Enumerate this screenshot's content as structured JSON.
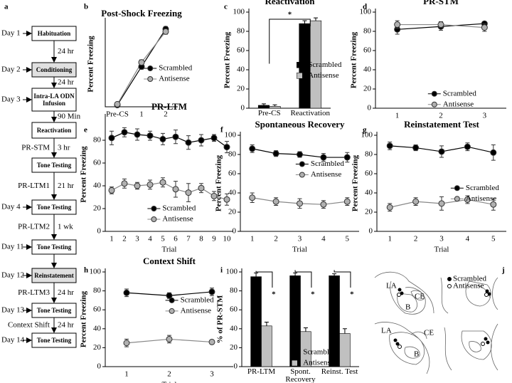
{
  "protocol": {
    "panel": "a",
    "boxes": [
      {
        "day": "Day 1",
        "label": "Habituation"
      },
      {
        "day": "Day 2",
        "label": "Conditioning",
        "shaded": true
      },
      {
        "day": "Day 3",
        "label": "Intra-LA ODN Infusion"
      },
      {
        "label": "Reactivation"
      },
      {
        "label": "Tone Testing"
      },
      {
        "day": "Day 4",
        "label": "Tone Testing"
      },
      {
        "day": "Day 11",
        "label": "Tone Testing"
      },
      {
        "day": "Day 12",
        "label": "Reinstatement",
        "shaded": true
      },
      {
        "day": "Day 13",
        "label": "Tone Testing"
      },
      {
        "day": "Day 14",
        "label": "Tone Testing"
      }
    ],
    "links": [
      {
        "right": "24 hr"
      },
      {
        "right": "24 hr"
      },
      {
        "right": "90 Min"
      },
      {
        "left": "PR-STM",
        "right": "3 hr"
      },
      {
        "left": "PR-LTM1",
        "right": "21 hr"
      },
      {
        "left": "PR-LTM2",
        "right": "1 wk"
      },
      null,
      {
        "left": "PR-LTM3",
        "right": "24 hr"
      },
      {
        "left": "Context Shift",
        "right": "24 hr"
      }
    ]
  },
  "chart_data": [
    {
      "panel": "b",
      "type": "line",
      "title": "Post-Shock Freezing",
      "y_label": "Percent Freezing",
      "categories": [
        "Pre-CS",
        "1",
        "2"
      ],
      "ylim": [
        0,
        100
      ],
      "legend": "center right",
      "series": [
        {
          "name": "Scrambled",
          "color": "#000000",
          "values": [
            2,
            47,
            91
          ],
          "errors": [
            1,
            3,
            3
          ]
        },
        {
          "name": "Antisense",
          "color": "#b0b0b0",
          "values": [
            3,
            52,
            88
          ],
          "errors": [
            1,
            3,
            3
          ]
        }
      ]
    },
    {
      "panel": "c",
      "type": "bar",
      "title": "Reactivation",
      "y_label": "Percent Freezing",
      "categories": [
        "Pre-CS",
        "Reactivation"
      ],
      "ylim": [
        0,
        100
      ],
      "yticks": [
        0,
        20,
        40,
        60,
        80,
        100
      ],
      "legend": "center right",
      "annotations": [
        "*"
      ],
      "series": [
        {
          "name": "Scrambled",
          "color": "#000000",
          "values": [
            3,
            88
          ],
          "errors": [
            1.5,
            3
          ]
        },
        {
          "name": "Antisense",
          "color": "#c0c0c0",
          "values": [
            2,
            91
          ],
          "errors": [
            1.5,
            3
          ]
        }
      ]
    },
    {
      "panel": "d",
      "type": "line",
      "title": "PR-STM",
      "y_label": "Percent Freezing",
      "categories": [
        "1",
        "2",
        "3"
      ],
      "ylim": [
        0,
        100
      ],
      "yticks": [
        0,
        20,
        40,
        60,
        80,
        100
      ],
      "legend": "lower right",
      "series": [
        {
          "name": "Scrambled",
          "color": "#000000",
          "values": [
            82,
            85,
            88
          ],
          "errors": [
            5,
            4,
            2
          ]
        },
        {
          "name": "Antisense",
          "color": "#b0b0b0",
          "values": [
            87,
            87,
            84
          ],
          "errors": [
            4,
            3,
            4
          ]
        }
      ]
    },
    {
      "panel": "e",
      "type": "line",
      "title": "PR-LTM",
      "y_label": "Percent Freezing",
      "x_label": "Trial",
      "categories": [
        "1",
        "2",
        "3",
        "4",
        "5",
        "6",
        "7",
        "8",
        "9",
        "10"
      ],
      "ylim": [
        0,
        100
      ],
      "yticks": [
        0,
        20,
        40,
        60,
        80
      ],
      "legend": "lower center",
      "series": [
        {
          "name": "Scrambled",
          "color": "#000000",
          "values": [
            82,
            87,
            85,
            84,
            81,
            83,
            78,
            80,
            82,
            74
          ],
          "errors": [
            6,
            4,
            5,
            4,
            5,
            6,
            6,
            5,
            3,
            5
          ]
        },
        {
          "name": "Antisense",
          "color": "#b0b0b0",
          "values": [
            36,
            42,
            40,
            41,
            43,
            37,
            34,
            38,
            31,
            28
          ],
          "errors": [
            3,
            4,
            3,
            4,
            4,
            7,
            8,
            4,
            4,
            5
          ]
        }
      ]
    },
    {
      "panel": "f",
      "type": "line",
      "title": "Spontaneous Recovery",
      "y_label": "Percent Freezing",
      "x_label": "Trial",
      "categories": [
        "1",
        "2",
        "3",
        "4",
        "5"
      ],
      "ylim": [
        0,
        100
      ],
      "yticks": [
        0,
        20,
        40,
        60,
        80,
        100
      ],
      "legend": "upper right",
      "series": [
        {
          "name": "Scrambled",
          "color": "#000000",
          "values": [
            86,
            81,
            80,
            77,
            77
          ],
          "errors": [
            4,
            3,
            3,
            4,
            5
          ]
        },
        {
          "name": "Antisense",
          "color": "#b0b0b0",
          "values": [
            35,
            31,
            29,
            28,
            31
          ],
          "errors": [
            5,
            4,
            5,
            4,
            4
          ]
        }
      ]
    },
    {
      "panel": "g",
      "type": "line",
      "title": "Reinstatement Test",
      "y_label": "Percent Freezing",
      "x_label": "Trial",
      "categories": [
        "1",
        "2",
        "3",
        "4",
        "5"
      ],
      "ylim": [
        0,
        100
      ],
      "yticks": [
        0,
        20,
        40,
        60,
        80,
        100
      ],
      "legend": "center right",
      "series": [
        {
          "name": "Scrambled",
          "color": "#000000",
          "values": [
            89,
            87,
            83,
            88,
            82
          ],
          "errors": [
            4,
            3,
            6,
            4,
            8
          ]
        },
        {
          "name": "Antisense",
          "color": "#b0b0b0",
          "values": [
            25,
            31,
            29,
            33,
            28
          ],
          "errors": [
            4,
            4,
            7,
            4,
            6
          ]
        }
      ]
    },
    {
      "panel": "h",
      "type": "line",
      "title": "Context Shift",
      "y_label": "Percent Freezing",
      "x_label": "Trial",
      "categories": [
        "1",
        "2",
        "3"
      ],
      "ylim": [
        0,
        100
      ],
      "yticks": [
        0,
        20,
        40,
        60,
        80,
        100
      ],
      "legend": "upper right",
      "series": [
        {
          "name": "Scrambled",
          "color": "#000000",
          "values": [
            78,
            75,
            79
          ],
          "errors": [
            4,
            3,
            4
          ]
        },
        {
          "name": "Antisense",
          "color": "#b0b0b0",
          "values": [
            25,
            29,
            26
          ],
          "errors": [
            4,
            4,
            2
          ]
        }
      ]
    },
    {
      "panel": "i",
      "type": "bar",
      "y_label": "% of PR-STM",
      "categories": [
        "PR-LTM",
        "Spont. Recovery",
        "Reinst. Test"
      ],
      "ylim": [
        0,
        100
      ],
      "yticks": [
        0,
        20,
        40,
        60,
        80,
        100
      ],
      "legend": "lower right",
      "annotations": [
        "*",
        "*",
        "*"
      ],
      "series": [
        {
          "name": "Scrambled",
          "color": "#000000",
          "values": [
            95,
            96,
            96
          ],
          "errors": [
            4,
            3,
            2
          ]
        },
        {
          "name": "Antisense",
          "color": "#c0c0c0",
          "values": [
            43,
            37,
            35
          ],
          "errors": [
            4,
            4,
            5
          ]
        }
      ]
    }
  ],
  "placement": {
    "panel": "j",
    "legend": [
      "Scrambled",
      "Antisense"
    ],
    "regions": [
      "LA",
      "CE",
      "B"
    ]
  }
}
